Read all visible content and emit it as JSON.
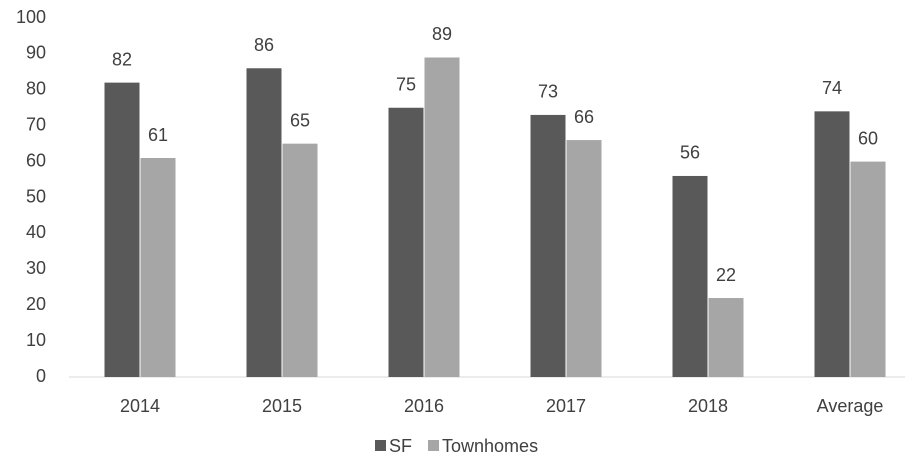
{
  "chart_data": {
    "type": "bar",
    "categories": [
      "2014",
      "2015",
      "2016",
      "2017",
      "2018",
      "Average"
    ],
    "series": [
      {
        "name": "SF",
        "color": "#595959",
        "values": [
          82,
          86,
          75,
          73,
          56,
          74
        ]
      },
      {
        "name": "Townhomes",
        "color": "#a6a6a6",
        "values": [
          61,
          65,
          89,
          66,
          22,
          60
        ]
      }
    ],
    "ylim": [
      0,
      100
    ],
    "yticks": [
      0,
      10,
      20,
      30,
      40,
      50,
      60,
      70,
      80,
      90,
      100
    ],
    "grid": false,
    "legend": "bottom"
  }
}
